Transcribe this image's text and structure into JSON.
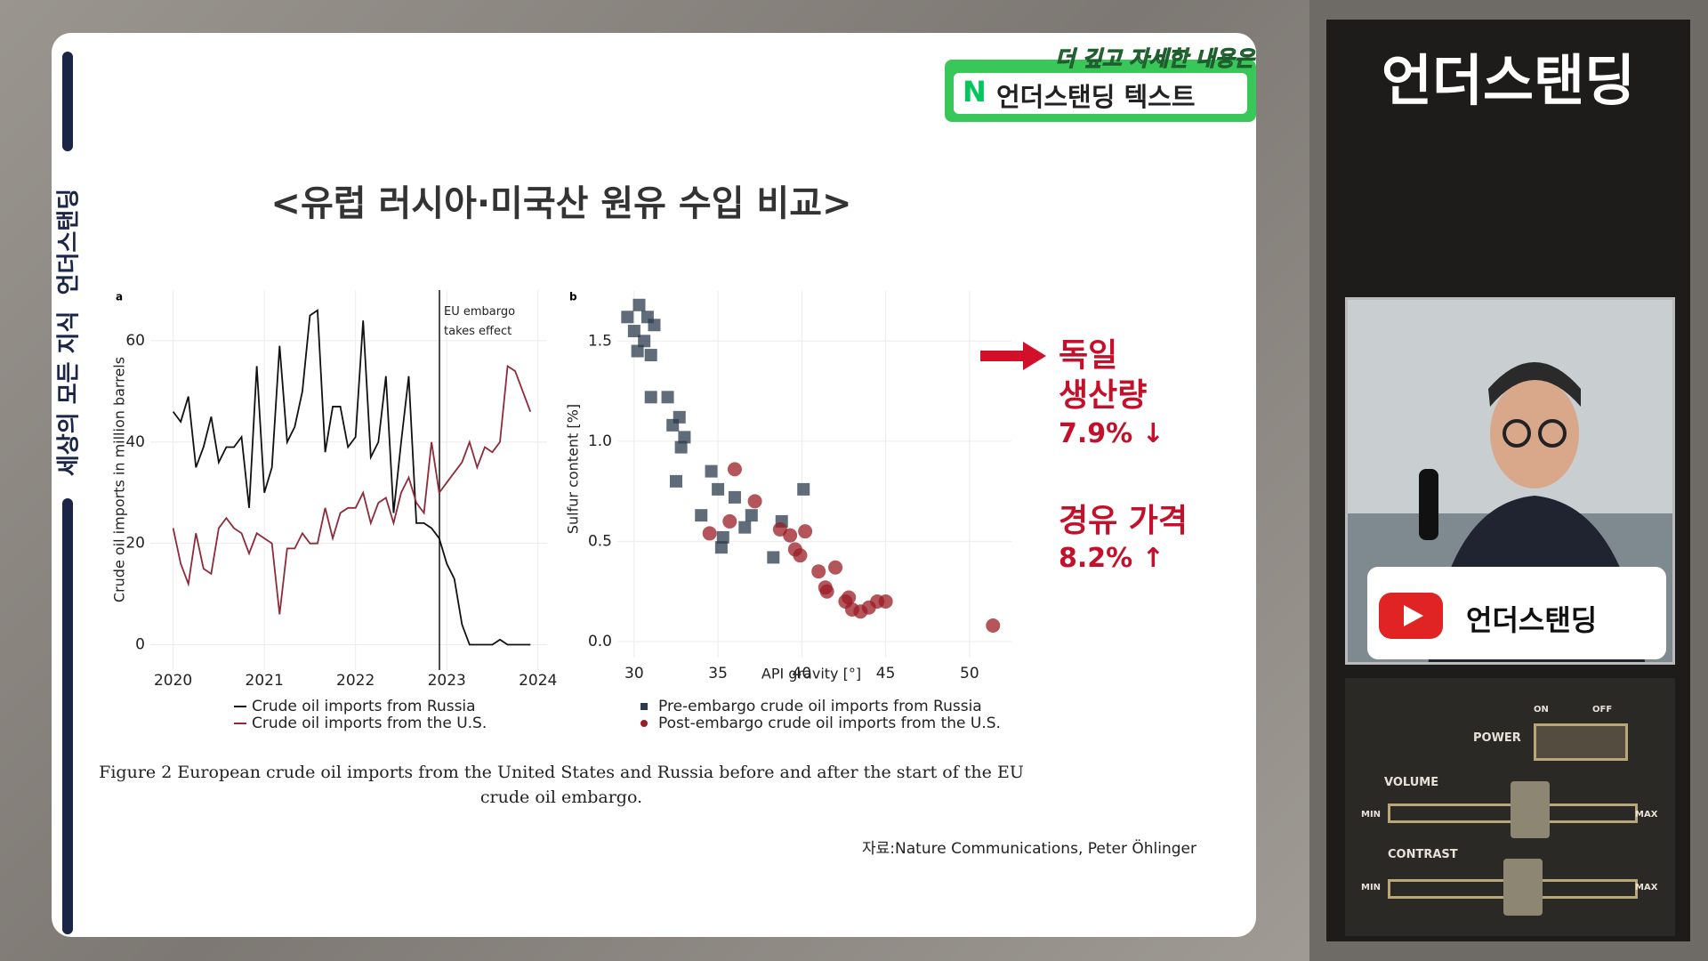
{
  "banner": {
    "top": "더 깊고 자세한 내용은",
    "logo": "N",
    "text": "언더스탠딩 텍스트"
  },
  "side_label": "세상의 모든 지식  언더스탠딩",
  "slide_title": "<유럽 러시아·미국산 원유 수입 비교>",
  "chart_data": [
    {
      "type": "line",
      "panel": "a",
      "x": [
        2020,
        2020.083,
        2020.167,
        2020.25,
        2020.333,
        2020.417,
        2020.5,
        2020.583,
        2020.667,
        2020.75,
        2020.833,
        2020.917,
        2021,
        2021.083,
        2021.167,
        2021.25,
        2021.333,
        2021.417,
        2021.5,
        2021.583,
        2021.667,
        2021.75,
        2021.833,
        2021.917,
        2022,
        2022.083,
        2022.167,
        2022.25,
        2022.333,
        2022.417,
        2022.5,
        2022.583,
        2022.667,
        2022.75,
        2022.833,
        2022.917,
        2023,
        2023.083,
        2023.167,
        2023.25,
        2023.333,
        2023.417,
        2023.5,
        2023.583,
        2023.667,
        2023.75,
        2023.833,
        2023.917
      ],
      "xlim": [
        2019.75,
        2024.1
      ],
      "xticks": [
        2020,
        2021,
        2022,
        2023,
        2024
      ],
      "ylim": [
        -5,
        70
      ],
      "yticks": [
        0,
        20,
        40,
        60
      ],
      "ylabel": "Crude oil imports in million barrels",
      "grid": true,
      "legend": "bottom",
      "series": [
        {
          "name": "Crude oil imports from Russia",
          "color": "#111111",
          "values": [
            46,
            44,
            49,
            35,
            39,
            45,
            36,
            39,
            39,
            41,
            27,
            55,
            30,
            35,
            59,
            40,
            43,
            50,
            65,
            66,
            38,
            47,
            47,
            39,
            41,
            64,
            37,
            40,
            53,
            26,
            40,
            53,
            24,
            24,
            23,
            21,
            16,
            13,
            4,
            0,
            0,
            0,
            0,
            1,
            0,
            0,
            0,
            0
          ]
        },
        {
          "name": "Crude oil imports from the U.S.",
          "color": "#8e2a3a",
          "values": [
            23,
            16,
            12,
            22,
            15,
            14,
            23,
            25,
            23,
            22,
            18,
            22,
            21,
            20,
            6,
            19,
            19,
            22,
            20,
            20,
            27,
            21,
            26,
            27,
            27,
            30,
            24,
            28,
            29,
            24,
            30,
            33,
            28,
            26,
            40,
            30,
            32,
            34,
            36,
            40,
            35,
            39,
            38,
            40,
            55,
            54,
            50,
            46
          ]
        }
      ],
      "annotations": [
        {
          "x": 2022.92,
          "text": "EU embargo takes effect"
        }
      ]
    },
    {
      "type": "scatter",
      "panel": "b",
      "xlim": [
        29,
        52.5
      ],
      "xticks": [
        30,
        35,
        40,
        45,
        50
      ],
      "ylim": [
        -0.08,
        1.75
      ],
      "yticks": [
        {
          "value": 0,
          "label": "0.0"
        },
        0.5,
        {
          "value": 1,
          "label": "1.0"
        },
        1.5
      ],
      "xlabel": "API gravity [°]",
      "ylabel": "Sulfur content [%]",
      "grid": true,
      "legend": "bottom",
      "series": [
        {
          "name": "Pre-embargo crude oil imports from Russia",
          "color": "#2b3b4c",
          "marker": "square",
          "x": [
            29.6,
            30.0,
            30.3,
            30.6,
            30.8,
            31.2,
            30.2,
            31.0,
            31.0,
            32.0,
            32.3,
            32.7,
            32.8,
            33.0,
            32.5,
            34.6,
            35.0,
            36.0,
            40.1,
            37.0,
            34.0,
            35.3,
            35.2,
            36.6,
            38.3,
            38.8
          ],
          "values": [
            1.62,
            1.55,
            1.68,
            1.5,
            1.62,
            1.58,
            1.45,
            1.43,
            1.22,
            1.22,
            1.08,
            1.12,
            0.97,
            1.02,
            0.8,
            0.85,
            0.76,
            0.72,
            0.76,
            0.63,
            0.63,
            0.52,
            0.47,
            0.57,
            0.42,
            0.6
          ]
        },
        {
          "name": "Post-embargo crude oil imports from the U.S.",
          "color": "#9b1c24",
          "marker": "circle",
          "x": [
            36.0,
            35.7,
            37.2,
            34.5,
            38.7,
            39.3,
            39.6,
            39.9,
            40.2,
            41.0,
            42.0,
            41.4,
            41.5,
            42.6,
            43.0,
            43.5,
            44.0,
            44.5,
            42.8,
            45.0,
            51.4
          ],
          "values": [
            0.86,
            0.6,
            0.7,
            0.54,
            0.56,
            0.53,
            0.46,
            0.43,
            0.55,
            0.35,
            0.37,
            0.27,
            0.25,
            0.2,
            0.16,
            0.15,
            0.17,
            0.2,
            0.22,
            0.2,
            0.08
          ]
        }
      ]
    }
  ],
  "caption": "Figure 2 European crude oil imports from the United States and Russia before and after the start of the EU crude oil embargo.",
  "source": "자료:Nature Communications, Peter Öhlinger",
  "notes": {
    "title": "독일",
    "line1": "생산량",
    "value1": "7.9% ↓",
    "line2": "경유 가격",
    "value2": "8.2% ↑"
  },
  "channel": "언더스탠딩",
  "youtube_name": "언더스탠딩",
  "controls": {
    "power": "POWER",
    "on": "ON",
    "off": "OFF",
    "volume": "VOLUME",
    "contrast": "CONTRAST",
    "min": "MIN",
    "max": "MAX"
  }
}
